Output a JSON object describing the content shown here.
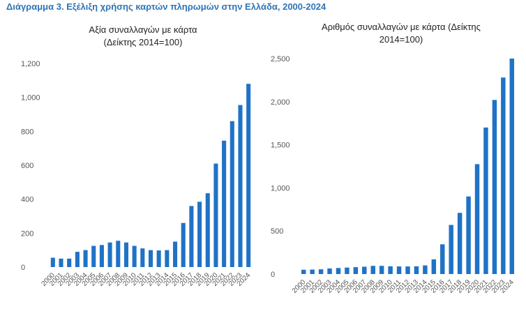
{
  "figure_title": "Διάγραμμα 3. Εξέλιξη χρήσης καρτών πληρωμών στην Ελλάδα, 2000-2024",
  "colors": {
    "bar": "#1f73c6",
    "title": "#2e74b5"
  },
  "chart_data": [
    {
      "type": "bar",
      "title_line1": "Αξία συναλλαγών με κάρτα",
      "title_line2": "(Δείκτης 2014=100)",
      "categories": [
        "2000",
        "2001",
        "2002",
        "2003",
        "2004",
        "2005",
        "2006",
        "2007",
        "2008",
        "2009",
        "2010",
        "2011",
        "2012",
        "2013",
        "2014",
        "2015",
        "2016",
        "2017",
        "2018",
        "2019",
        "2020",
        "2021",
        "2022",
        "2023",
        "2024"
      ],
      "values": [
        55,
        50,
        50,
        90,
        100,
        125,
        130,
        145,
        155,
        145,
        125,
        110,
        100,
        98,
        100,
        150,
        260,
        360,
        385,
        435,
        610,
        745,
        860,
        955,
        1080
      ],
      "yticks": [
        "0",
        "200",
        "400",
        "600",
        "800",
        "1,000",
        "1,200"
      ],
      "ylim": [
        0,
        1200
      ]
    },
    {
      "type": "bar",
      "title_line1": "Αριθμός συναλλαγών με κάρτα (Δείκτης",
      "title_line2": "2014=100)",
      "categories": [
        "2000",
        "2001",
        "2002",
        "2003",
        "2004",
        "2005",
        "2006",
        "2007",
        "2008",
        "2009",
        "2010",
        "2011",
        "2012",
        "2013",
        "2014",
        "2015",
        "2016",
        "2017",
        "2018",
        "2019",
        "2020",
        "2021",
        "2022",
        "2023",
        "2024"
      ],
      "values": [
        50,
        52,
        55,
        65,
        70,
        75,
        80,
        85,
        95,
        95,
        90,
        88,
        88,
        90,
        100,
        170,
        345,
        570,
        710,
        900,
        1275,
        1700,
        2020,
        2280,
        2500
      ],
      "yticks": [
        "0",
        "500",
        "1,000",
        "1,500",
        "2,000",
        "2,500"
      ],
      "ylim": [
        0,
        2500
      ]
    }
  ]
}
